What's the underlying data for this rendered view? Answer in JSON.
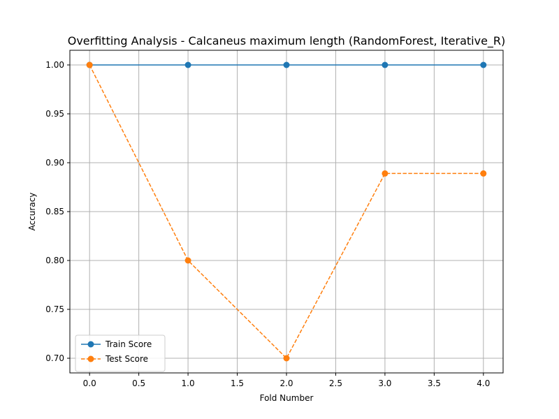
{
  "chart_data": {
    "type": "line",
    "title": "Overfitting Analysis - Calcaneus maximum length (RandomForest, Iterative_R)",
    "xlabel": "Fold Number",
    "ylabel": "Accuracy",
    "xlim": [
      -0.2,
      4.2
    ],
    "ylim": [
      0.685,
      1.015
    ],
    "xticks": [
      0.0,
      0.5,
      1.0,
      1.5,
      2.0,
      2.5,
      3.0,
      3.5,
      4.0
    ],
    "xtick_labels": [
      "0.0",
      "0.5",
      "1.0",
      "1.5",
      "2.0",
      "2.5",
      "3.0",
      "3.5",
      "4.0"
    ],
    "yticks": [
      0.7,
      0.75,
      0.8,
      0.85,
      0.9,
      0.95,
      1.0
    ],
    "ytick_labels": [
      "0.70",
      "0.75",
      "0.80",
      "0.85",
      "0.90",
      "0.95",
      "1.00"
    ],
    "grid": true,
    "legend_position": "lower-left",
    "x": [
      0,
      1,
      2,
      3,
      4
    ],
    "series": [
      {
        "name": "Train Score",
        "values": [
          1.0,
          1.0,
          1.0,
          1.0,
          1.0
        ],
        "color": "#1f77b4",
        "linestyle": "solid",
        "marker": "circle"
      },
      {
        "name": "Test Score",
        "values": [
          1.0,
          0.8,
          0.7,
          0.889,
          0.889
        ],
        "color": "#ff7f0e",
        "linestyle": "dashed",
        "marker": "circle"
      }
    ]
  }
}
